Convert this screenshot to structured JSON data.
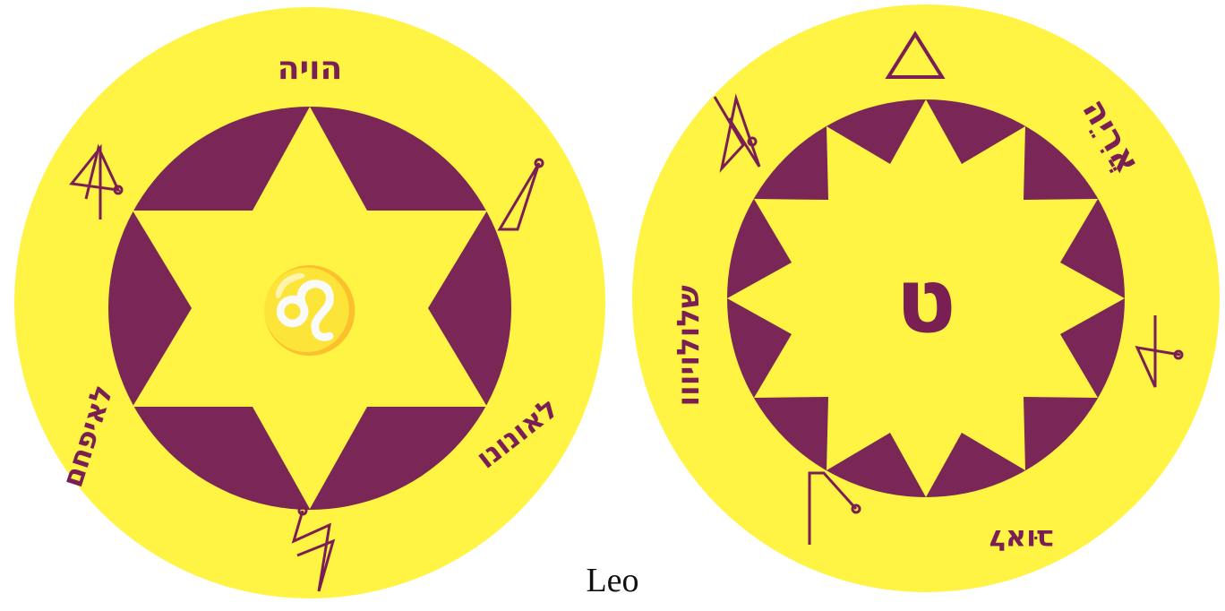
{
  "colors": {
    "yellow": "#fff343",
    "purple": "#7a2656",
    "ink": "#7a1f54"
  },
  "caption": "Leo",
  "left_seal": {
    "top_inscription": "הויה",
    "center_symbol": "♌",
    "left_inscription": "לאיפחם",
    "right_inscription": "לאונונו"
  },
  "right_seal": {
    "top_right_inscription": "אֲרִיֵה",
    "center_letter": "ט",
    "left_inscription": "שלולויווו",
    "bottom_inscription": "לאוּב"
  }
}
